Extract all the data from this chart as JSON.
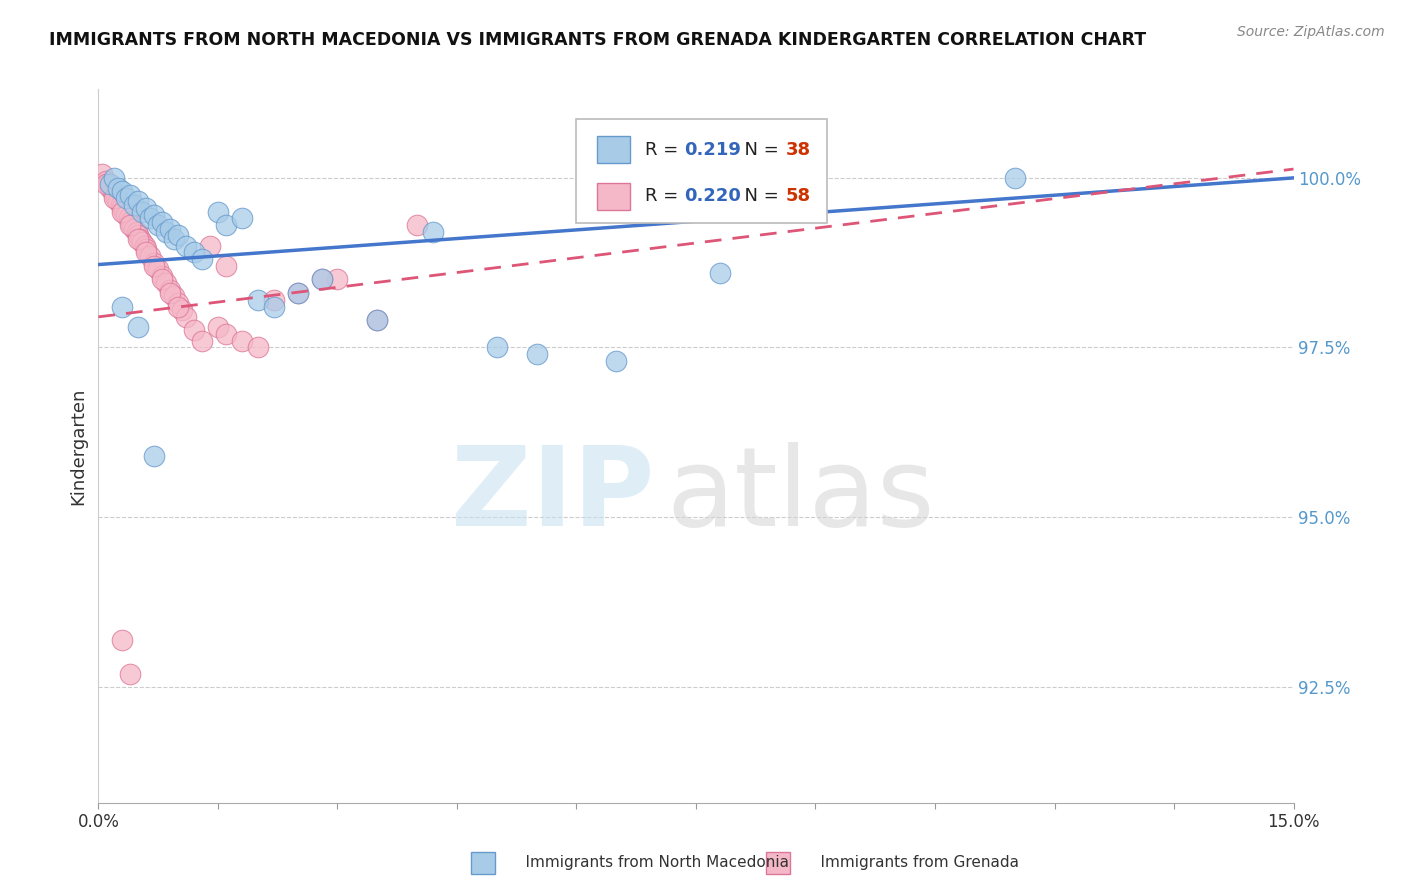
{
  "title": "IMMIGRANTS FROM NORTH MACEDONIA VS IMMIGRANTS FROM GRENADA KINDERGARTEN CORRELATION CHART",
  "source": "Source: ZipAtlas.com",
  "ylabel": "Kindergarten",
  "x_min": 0.0,
  "x_max": 15.0,
  "y_min": 90.8,
  "y_max": 101.3,
  "y_ticks": [
    92.5,
    95.0,
    97.5,
    100.0
  ],
  "y_tick_labels": [
    "92.5%",
    "95.0%",
    "97.5%",
    "100.0%"
  ],
  "blue_R": 0.219,
  "blue_N": 38,
  "pink_R": 0.22,
  "pink_N": 58,
  "blue_color": "#a8cce8",
  "pink_color": "#f5b8c8",
  "blue_edge_color": "#6699cc",
  "pink_edge_color": "#dd7799",
  "blue_line_color": "#4477cc",
  "pink_line_color": "#dd5577",
  "blue_line_intercept": 98.72,
  "blue_line_slope": 0.085,
  "pink_line_intercept": 97.95,
  "pink_line_slope": 0.145,
  "blue_x": [
    0.15,
    0.2,
    0.25,
    0.3,
    0.35,
    0.4,
    0.45,
    0.5,
    0.55,
    0.6,
    0.65,
    0.7,
    0.75,
    0.8,
    0.85,
    0.9,
    0.95,
    1.0,
    1.1,
    1.2,
    1.3,
    1.5,
    1.6,
    1.8,
    2.0,
    2.2,
    2.5,
    2.8,
    3.5,
    4.2,
    5.0,
    5.5,
    6.5,
    7.8,
    0.3,
    0.5,
    0.7,
    11.5
  ],
  "blue_y": [
    99.9,
    100.0,
    99.85,
    99.8,
    99.7,
    99.75,
    99.6,
    99.65,
    99.5,
    99.55,
    99.4,
    99.45,
    99.3,
    99.35,
    99.2,
    99.25,
    99.1,
    99.15,
    99.0,
    98.9,
    98.8,
    99.5,
    99.3,
    99.4,
    98.2,
    98.1,
    98.3,
    98.5,
    97.9,
    99.2,
    97.5,
    97.4,
    97.3,
    98.6,
    98.1,
    97.8,
    95.9,
    100.0
  ],
  "pink_x": [
    0.05,
    0.1,
    0.12,
    0.15,
    0.18,
    0.2,
    0.22,
    0.25,
    0.28,
    0.3,
    0.32,
    0.35,
    0.38,
    0.4,
    0.42,
    0.45,
    0.48,
    0.5,
    0.52,
    0.55,
    0.58,
    0.6,
    0.65,
    0.7,
    0.75,
    0.8,
    0.85,
    0.9,
    0.95,
    1.0,
    1.05,
    1.1,
    1.2,
    1.3,
    1.5,
    1.6,
    1.8,
    2.0,
    2.2,
    2.5,
    3.0,
    3.5,
    4.0,
    0.1,
    0.2,
    0.3,
    0.4,
    0.5,
    0.6,
    0.7,
    0.8,
    0.9,
    1.0,
    1.4,
    1.6,
    2.8,
    0.3,
    0.4
  ],
  "pink_y": [
    100.05,
    99.95,
    99.9,
    99.85,
    99.8,
    99.75,
    99.7,
    99.65,
    99.6,
    99.55,
    99.5,
    99.45,
    99.4,
    99.35,
    99.3,
    99.25,
    99.2,
    99.15,
    99.1,
    99.05,
    99.0,
    98.95,
    98.85,
    98.75,
    98.65,
    98.55,
    98.45,
    98.35,
    98.25,
    98.15,
    98.05,
    97.95,
    97.75,
    97.6,
    97.8,
    97.7,
    97.6,
    97.5,
    98.2,
    98.3,
    98.5,
    97.9,
    99.3,
    99.9,
    99.7,
    99.5,
    99.3,
    99.1,
    98.9,
    98.7,
    98.5,
    98.3,
    98.1,
    99.0,
    98.7,
    98.5,
    93.2,
    92.7
  ]
}
